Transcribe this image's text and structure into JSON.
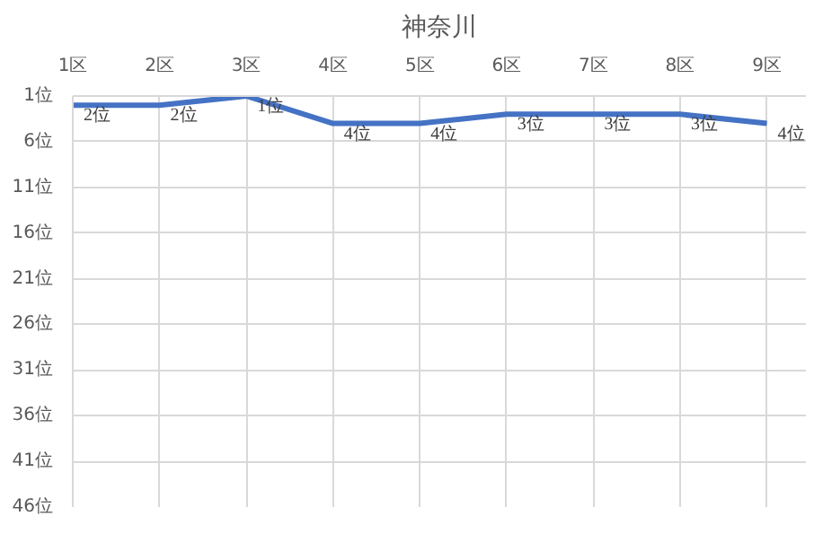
{
  "chart_data": {
    "type": "line",
    "title": "神奈川",
    "categories": [
      "1区",
      "2区",
      "3区",
      "4区",
      "5区",
      "6区",
      "7区",
      "8区",
      "9区"
    ],
    "series": [
      {
        "color": "#4472c4",
        "values": [
          2,
          2,
          1,
          4,
          4,
          3,
          3,
          3,
          4
        ],
        "value_labels": [
          "2位",
          "2位",
          "1位",
          "4位",
          "4位",
          "3位",
          "3位",
          "3位",
          "4位"
        ]
      }
    ],
    "ylim": [
      46,
      1
    ],
    "yticks": [
      {
        "value": 1,
        "label": "1位"
      },
      {
        "value": 6,
        "label": "6位"
      },
      {
        "value": 11,
        "label": "11位"
      },
      {
        "value": 16,
        "label": "16位"
      },
      {
        "value": 21,
        "label": "21位"
      },
      {
        "value": 26,
        "label": "26位"
      },
      {
        "value": 31,
        "label": "31位"
      },
      {
        "value": 36,
        "label": "36位"
      },
      {
        "value": 41,
        "label": "41位"
      },
      {
        "value": 46,
        "label": "46位"
      }
    ],
    "grid": true,
    "marker": "none",
    "line_style": "solid"
  }
}
